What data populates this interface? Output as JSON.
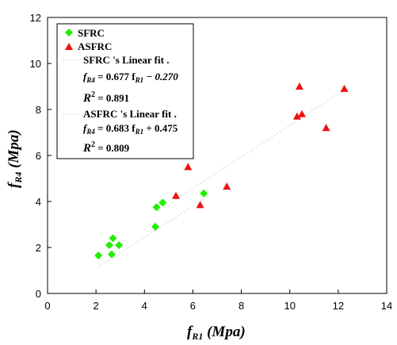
{
  "chart_data": {
    "type": "scatter",
    "xlabel": "f",
    "xlabel_sub": "R1",
    "xlabel_unit": " (Mpa)",
    "ylabel": "f",
    "ylabel_sub": "R4",
    "ylabel_unit": " (Mpa)",
    "xlim": [
      0,
      14
    ],
    "ylim": [
      0,
      12
    ],
    "xticks": [
      "0",
      "2",
      "4",
      "6",
      "8",
      "10",
      "12",
      "14"
    ],
    "yticks": [
      "0",
      "2",
      "4",
      "6",
      "8",
      "10",
      "12"
    ],
    "legend_position": "top-left",
    "series": [
      {
        "name": "SFRC",
        "marker": "diamond",
        "color": "#22ee00",
        "points": [
          [
            2.1,
            1.65
          ],
          [
            2.55,
            2.1
          ],
          [
            2.65,
            1.7
          ],
          [
            2.7,
            2.4
          ],
          [
            2.95,
            2.1
          ],
          [
            4.45,
            2.9
          ],
          [
            4.5,
            3.75
          ],
          [
            4.75,
            3.95
          ],
          [
            6.45,
            4.35
          ]
        ],
        "fit": {
          "slope": 0.677,
          "intercept": -0.27,
          "x_range": [
            2.1,
            6.45
          ]
        }
      },
      {
        "name": "ASFRC",
        "marker": "triangle",
        "color": "#ee1111",
        "points": [
          [
            5.3,
            4.25
          ],
          [
            5.8,
            5.5
          ],
          [
            6.3,
            3.85
          ],
          [
            7.4,
            4.65
          ],
          [
            10.3,
            7.7
          ],
          [
            10.4,
            9.0
          ],
          [
            10.5,
            7.8
          ],
          [
            11.5,
            7.2
          ],
          [
            12.25,
            8.9
          ]
        ],
        "fit": {
          "slope": 0.683,
          "intercept": 0.475,
          "x_range": [
            5.3,
            12.25
          ]
        }
      }
    ],
    "legend": {
      "sfrc_label": "SFRC",
      "asfrc_label": "ASFRC",
      "sfrc_fit_label": "SFRC 's Linear fit .",
      "sfrc_eq_main": "f",
      "sfrc_eq_sub1": "R4",
      "sfrc_eq_mid": " = 0.677 f",
      "sfrc_eq_sub2": "R1",
      "sfrc_eq_tail": " − 0.270",
      "sfrc_r2_main": "R",
      "sfrc_r2_sup": "2",
      "sfrc_r2_tail": " = 0.891",
      "asfrc_fit_label": "ASFRC 's Linear fit .",
      "asfrc_eq_main": "f",
      "asfrc_eq_sub1": "R4",
      "asfrc_eq_mid": " = 0.683 f",
      "asfrc_eq_sub2": "R1",
      "asfrc_eq_tail": " + 0.475",
      "asfrc_r2_main": "R",
      "asfrc_r2_sup": "2",
      "asfrc_r2_tail": " = 0.809"
    }
  }
}
